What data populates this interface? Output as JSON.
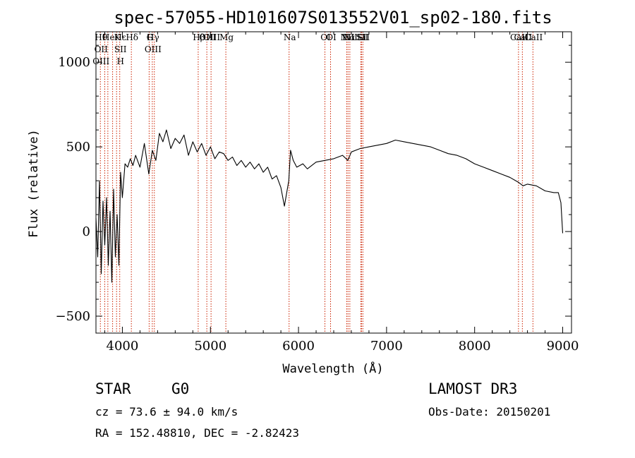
{
  "chart_data": {
    "type": "line",
    "title": "spec-57055-HD101607S013552V01_sp02-180.fits",
    "xlabel": "Wavelength (Å)",
    "ylabel": "Flux (relative)",
    "xlim": [
      3700,
      9100
    ],
    "ylim": [
      -600,
      1180
    ],
    "x_ticks": [
      4000,
      5000,
      6000,
      7000,
      8000,
      9000
    ],
    "y_ticks": [
      -500,
      0,
      500,
      1000
    ],
    "x_tick_labels": [
      "4000",
      "5000",
      "6000",
      "7000",
      "8000",
      "9000"
    ],
    "y_tick_labels": [
      "−500",
      "0",
      "500",
      "1000"
    ],
    "series": [
      {
        "name": "flux",
        "x": [
          3700,
          3720,
          3740,
          3760,
          3780,
          3800,
          3820,
          3840,
          3860,
          3880,
          3900,
          3920,
          3940,
          3960,
          3980,
          4000,
          4030,
          4060,
          4090,
          4120,
          4150,
          4200,
          4250,
          4300,
          4340,
          4380,
          4420,
          4460,
          4500,
          4550,
          4600,
          4650,
          4700,
          4750,
          4800,
          4850,
          4900,
          4950,
          5000,
          5050,
          5100,
          5150,
          5200,
          5250,
          5300,
          5350,
          5400,
          5450,
          5500,
          5550,
          5600,
          5650,
          5700,
          5750,
          5800,
          5840,
          5870,
          5890,
          5910,
          5940,
          5980,
          6050,
          6100,
          6200,
          6300,
          6400,
          6500,
          6560,
          6600,
          6700,
          6800,
          6900,
          7000,
          7100,
          7200,
          7300,
          7400,
          7500,
          7600,
          7700,
          7800,
          7900,
          8000,
          8100,
          8200,
          8300,
          8400,
          8500,
          8550,
          8600,
          8700,
          8800,
          8900,
          8950,
          8980,
          9000
        ],
        "y": [
          80,
          -150,
          300,
          -250,
          180,
          -80,
          200,
          -200,
          120,
          -300,
          250,
          -150,
          100,
          -200,
          350,
          200,
          400,
          380,
          430,
          390,
          450,
          380,
          520,
          340,
          480,
          420,
          580,
          530,
          600,
          490,
          550,
          520,
          570,
          450,
          530,
          470,
          520,
          450,
          500,
          430,
          470,
          460,
          420,
          440,
          390,
          420,
          380,
          410,
          370,
          400,
          350,
          380,
          310,
          330,
          260,
          150,
          240,
          300,
          480,
          420,
          380,
          400,
          370,
          410,
          420,
          430,
          450,
          420,
          470,
          490,
          500,
          510,
          520,
          540,
          530,
          520,
          510,
          500,
          480,
          460,
          450,
          430,
          400,
          380,
          360,
          340,
          320,
          290,
          270,
          280,
          270,
          240,
          230,
          230,
          170,
          -10
        ]
      }
    ],
    "line_markers": [
      {
        "wavelength": 3750,
        "labels": [
          "Hθ",
          "OII",
          "OIII"
        ]
      },
      {
        "wavelength": 3800,
        "labels": [
          ""
        ]
      },
      {
        "wavelength": 3835,
        "labels": [
          "He"
        ]
      },
      {
        "wavelength": 3889,
        "labels": [
          ""
        ]
      },
      {
        "wavelength": 3934,
        "labels": [
          "K"
        ]
      },
      {
        "wavelength": 3970,
        "labels": [
          "Hε",
          "SII",
          "H"
        ]
      },
      {
        "wavelength": 4102,
        "labels": [
          "Hδ"
        ]
      },
      {
        "wavelength": 4304,
        "labels": [
          "G"
        ]
      },
      {
        "wavelength": 4340,
        "labels": [
          "Hγ",
          "OIII"
        ]
      },
      {
        "wavelength": 4363,
        "labels": [
          ""
        ]
      },
      {
        "wavelength": 4861,
        "labels": [
          "Hβ"
        ]
      },
      {
        "wavelength": 4959,
        "labels": [
          "OIII"
        ]
      },
      {
        "wavelength": 5007,
        "labels": [
          "OIII"
        ]
      },
      {
        "wavelength": 5175,
        "labels": [
          "Mg"
        ]
      },
      {
        "wavelength": 5893,
        "labels": [
          "Na"
        ]
      },
      {
        "wavelength": 6300,
        "labels": [
          "OI"
        ]
      },
      {
        "wavelength": 6364,
        "labels": [
          "OI"
        ]
      },
      {
        "wavelength": 6548,
        "labels": [
          "NII"
        ]
      },
      {
        "wavelength": 6563,
        "labels": [
          "Hα"
        ]
      },
      {
        "wavelength": 6583,
        "labels": [
          "NII"
        ]
      },
      {
        "wavelength": 6707,
        "labels": [
          "Li"
        ]
      },
      {
        "wavelength": 6716,
        "labels": [
          "SII"
        ]
      },
      {
        "wavelength": 6731,
        "labels": [
          "SII"
        ]
      },
      {
        "wavelength": 8498,
        "labels": [
          "CaII"
        ]
      },
      {
        "wavelength": 8542,
        "labels": [
          "CaII"
        ]
      },
      {
        "wavelength": 8662,
        "labels": [
          "CaII"
        ]
      }
    ],
    "line_label_texts": [
      "Hθ",
      "OII",
      "OIII",
      "He",
      "Hε",
      "K",
      "SII",
      "H",
      "Hδ",
      "OIII",
      "Hγ",
      "G",
      "OIII",
      "OIII",
      "Hβ",
      "Mg",
      "Na",
      "OI",
      "OI",
      "Hα",
      "SII",
      "NII",
      "Li",
      "NII",
      "SII",
      "CaII",
      "CaII",
      "CaII"
    ]
  },
  "info": {
    "object_class": "STAR",
    "subclass": "G0",
    "survey": "LAMOST DR3",
    "redshift": "cz = 73.6 ± 94.0 km/s",
    "obs_date": "Obs-Date: 20150201",
    "coords": "RA = 152.48810, DEC =  -2.82423"
  },
  "colors": {
    "spectrum": "#000000",
    "marker": "#cc2200",
    "axes": "#000000"
  }
}
